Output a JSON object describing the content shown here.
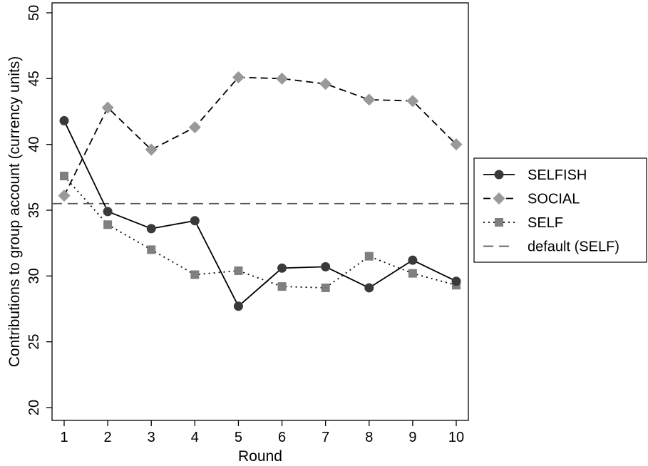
{
  "chart_data": {
    "type": "line",
    "xlabel": "Round",
    "ylabel": "Contributions to group account (currency units)",
    "xlim": [
      1,
      10
    ],
    "ylim": [
      20,
      50
    ],
    "x_ticks": [
      1,
      2,
      3,
      4,
      5,
      6,
      7,
      8,
      9,
      10
    ],
    "x_tick_labels": [
      "1",
      "2",
      "3",
      "4",
      "5",
      "6",
      "7",
      "8",
      "9",
      "10"
    ],
    "y_ticks": [
      20,
      25,
      30,
      35,
      40,
      45,
      50
    ],
    "y_tick_labels": [
      "20",
      "25",
      "30",
      "35",
      "40",
      "45",
      "50"
    ],
    "grid": false,
    "legend_position": "right",
    "x": [
      1,
      2,
      3,
      4,
      5,
      6,
      7,
      8,
      9,
      10
    ],
    "series": [
      {
        "name": "SELFISH",
        "values": [
          41.8,
          34.9,
          33.6,
          34.2,
          27.7,
          30.6,
          30.7,
          29.1,
          31.2,
          29.6
        ],
        "color": "#3a3a3a",
        "line_style": "solid",
        "marker": "circle"
      },
      {
        "name": "SOCIAL",
        "values": [
          36.1,
          42.8,
          39.6,
          41.3,
          45.1,
          45.0,
          44.6,
          43.4,
          43.3,
          40.0
        ],
        "color": "#999999",
        "line_style": "dashed",
        "marker": "diamond"
      },
      {
        "name": "SELF",
        "values": [
          37.6,
          33.9,
          32.0,
          30.1,
          30.4,
          29.2,
          29.1,
          31.5,
          30.2,
          29.3
        ],
        "color": "#7f7f7f",
        "line_style": "dotted",
        "marker": "square"
      },
      {
        "name": "default (SELF)",
        "values": [
          35.5,
          35.5,
          35.5,
          35.5,
          35.5,
          35.5,
          35.5,
          35.5,
          35.5,
          35.5
        ],
        "color": "#555555",
        "line_style": "longdash",
        "marker": "none"
      }
    ]
  }
}
